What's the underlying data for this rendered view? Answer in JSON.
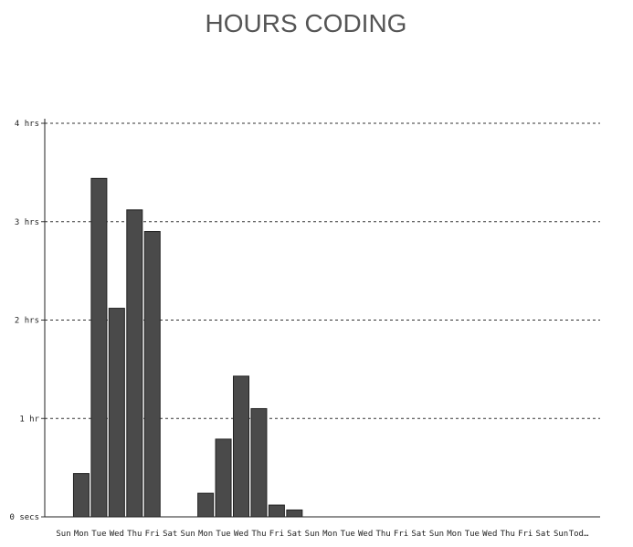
{
  "chart_data": {
    "type": "bar",
    "title": "HOURS CODING",
    "xlabel": "",
    "ylabel": "",
    "ylim": [
      0,
      4
    ],
    "grid": true,
    "y_ticks": [
      {
        "value": 0,
        "label": "0 secs"
      },
      {
        "value": 1,
        "label": "1 hr"
      },
      {
        "value": 2,
        "label": "2 hrs"
      },
      {
        "value": 3,
        "label": "3 hrs"
      },
      {
        "value": 4,
        "label": "4 hrs"
      }
    ],
    "categories": [
      "Sun",
      "Mon",
      "Tue",
      "Wed",
      "Thu",
      "Fri",
      "Sat",
      "Sun",
      "Mon",
      "Tue",
      "Wed",
      "Thu",
      "Fri",
      "Sat",
      "Sun",
      "Mon",
      "Tue",
      "Wed",
      "Thu",
      "Fri",
      "Sat",
      "Sun",
      "Mon",
      "Tue",
      "Wed",
      "Thu",
      "Fri",
      "Sat",
      "Sun",
      "Tod…"
    ],
    "values": [
      0,
      0.44,
      3.44,
      2.12,
      3.12,
      2.9,
      0,
      0,
      0.24,
      0.79,
      1.43,
      1.1,
      0.12,
      0.07,
      0,
      0,
      0,
      0,
      0,
      0,
      0,
      0,
      0,
      0,
      0,
      0,
      0,
      0,
      0,
      0
    ],
    "bar_color": "#4a4a4a"
  }
}
